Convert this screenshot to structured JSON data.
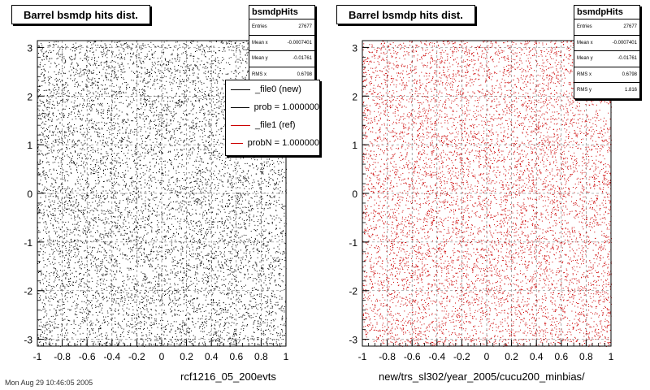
{
  "charts": [
    {
      "title": "Barrel bsmdp hits dist.",
      "xlabel": "rcf1216_05_200evts",
      "marker_color": "#000000",
      "stats": {
        "name": "bsmdpHits",
        "rows": [
          {
            "label": "Entries",
            "value": "27677"
          },
          {
            "label": "Mean x",
            "value": "-0.0007401"
          },
          {
            "label": "Mean y",
            "value": "-0.01761"
          },
          {
            "label": "RMS x",
            "value": "0.6798"
          }
        ]
      },
      "legend": [
        {
          "label": "_file0 (new)",
          "color": "#000000"
        },
        {
          "label": "prob = 1.000000",
          "color": "#000000"
        },
        {
          "label": "_file1 (ref)",
          "color": "#cc0000"
        },
        {
          "label": "probN = 1.000000",
          "color": "#cc0000"
        }
      ]
    },
    {
      "title": "Barrel bsmdp hits dist.",
      "xlabel": "new/trs_sl302/year_2005/cucu200_minbias/",
      "marker_color": "#cc0000",
      "stats": {
        "name": "bsmdpHits",
        "rows": [
          {
            "label": "Entries",
            "value": "27677"
          },
          {
            "label": "Mean x",
            "value": "-0.0007401"
          },
          {
            "label": "Mean y",
            "value": "-0.01761"
          },
          {
            "label": "RMS x",
            "value": "0.6798"
          },
          {
            "label": "RMS y",
            "value": "1.816"
          }
        ]
      },
      "legend": []
    }
  ],
  "chart_data": [
    {
      "type": "scatter",
      "title": "Barrel bsmdp hits dist.",
      "xlabel": "rcf1216_05_200evts",
      "ylabel": "",
      "xlim": [
        -1,
        1
      ],
      "ylim": [
        -3.14,
        3.14
      ],
      "xticks": [
        "-1",
        "-0.8",
        "-0.6",
        "-0.4",
        "-0.2",
        "0",
        "0.2",
        "0.4",
        "0.6",
        "0.8",
        "1"
      ],
      "yticks": [
        "-3",
        "-2",
        "-1",
        "0",
        "1",
        "2",
        "3"
      ],
      "grid": true,
      "legend_position": "top-right",
      "series": [
        {
          "name": "_file0 (new)",
          "color": "#000000",
          "entries": 27677,
          "mean_x": -0.0007401,
          "mean_y": -0.01761,
          "rms_x": 0.6798
        }
      ]
    },
    {
      "type": "scatter",
      "title": "Barrel bsmdp hits dist.",
      "xlabel": "new/trs_sl302/year_2005/cucu200_minbias/",
      "ylabel": "",
      "xlim": [
        -1,
        1
      ],
      "ylim": [
        -3.14,
        3.14
      ],
      "xticks": [
        "-1",
        "-0.8",
        "-0.6",
        "-0.4",
        "-0.2",
        "0",
        "0.2",
        "0.4",
        "0.6",
        "0.8",
        "1"
      ],
      "yticks": [
        "-3",
        "-2",
        "-1",
        "0",
        "1",
        "2",
        "3"
      ],
      "grid": true,
      "series": [
        {
          "name": "_file1 (ref)",
          "color": "#cc0000",
          "entries": 27677,
          "mean_x": -0.0007401,
          "mean_y": -0.01761,
          "rms_x": 0.6798,
          "rms_y": 1.816
        }
      ]
    }
  ],
  "footer": "Mon Aug 29 10:46:05 2005"
}
